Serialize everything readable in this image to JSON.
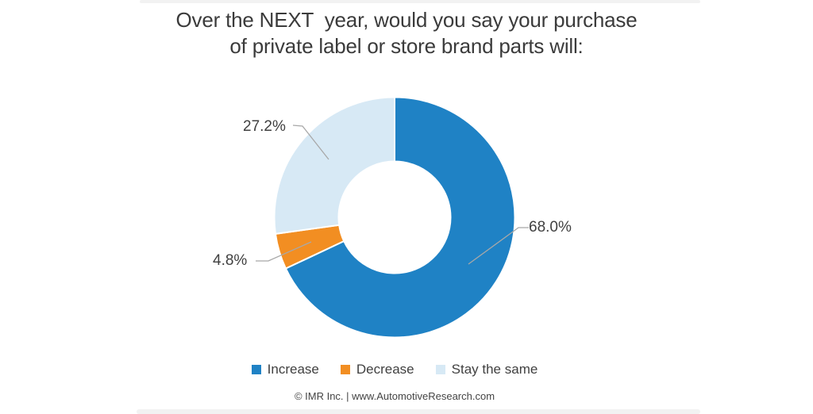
{
  "title": {
    "line1": "Over the NEXT  year, would you say your purchase",
    "line2": "of private label or store brand parts will:"
  },
  "chart_data": {
    "type": "pie",
    "subtype": "donut",
    "title": "Over the NEXT year, would you say your purchase of private label or store brand parts will:",
    "labels": [
      "Increase",
      "Decrease",
      "Stay the same"
    ],
    "values": [
      68.0,
      4.8,
      27.2
    ],
    "value_labels": [
      "68.0%",
      "4.8%",
      "27.2%"
    ],
    "colors": [
      "#1f82c5",
      "#f28e22",
      "#d7e9f5"
    ],
    "start_angle_deg": 0,
    "direction": "clockwise",
    "legend_position": "bottom",
    "leader_line_color": "#a8a8a8",
    "label_text_color": "#404040"
  },
  "footer": {
    "text": "© IMR Inc. | www.AutomotiveResearch.com"
  }
}
